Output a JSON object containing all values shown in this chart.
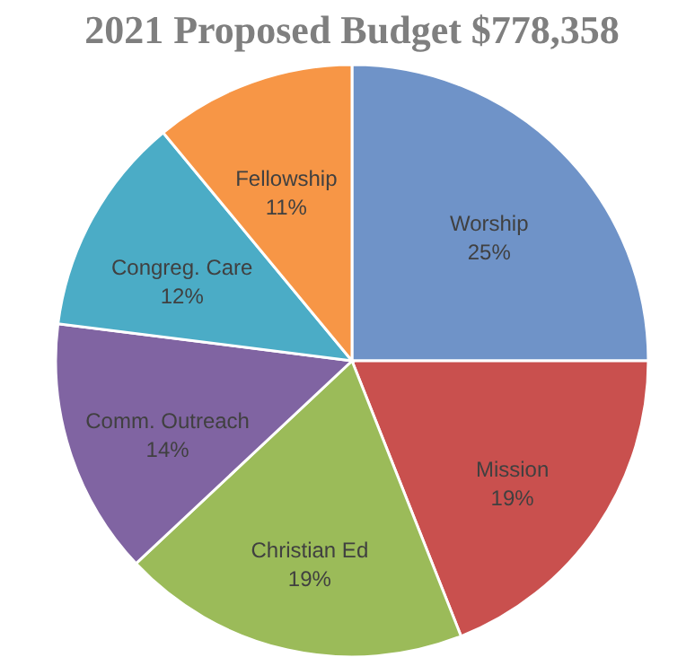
{
  "chart_data": {
    "type": "pie",
    "title": "2021 Proposed Budget $778,358",
    "categories": [
      "Worship",
      "Mission",
      "Christian Ed",
      "Comm. Outreach",
      "Congreg. Care",
      "Fellowship"
    ],
    "values": [
      25,
      19,
      19,
      14,
      12,
      11
    ],
    "value_labels": [
      "25%",
      "19%",
      "19%",
      "14%",
      "12%",
      "11%"
    ],
    "colors": [
      "#6f93c8",
      "#c9504e",
      "#9bbb59",
      "#8064a2",
      "#4bacc6",
      "#f79646"
    ],
    "legend": false
  }
}
